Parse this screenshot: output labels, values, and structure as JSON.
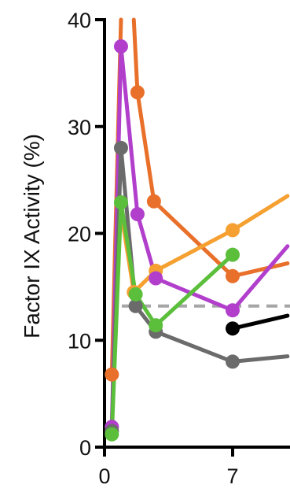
{
  "chart_data": {
    "type": "line",
    "title": "",
    "xlabel": "",
    "ylabel": "Factor IX Activity (%)",
    "xlim": [
      0,
      10
    ],
    "ylim": [
      0,
      40
    ],
    "x_ticks": [
      0,
      7
    ],
    "y_ticks": [
      0,
      10,
      20,
      30,
      40
    ],
    "grid": false,
    "legend": "none",
    "reference_line": {
      "y": 13.2,
      "style": "dashed",
      "color": "#a6a6a6"
    },
    "series": [
      {
        "color": "#e8702a",
        "points": [
          [
            0.4,
            6.8
          ],
          [
            0.9,
            40
          ]
        ],
        "markers": [
          [
            0.4,
            6.8
          ]
        ]
      },
      {
        "color": "#e8702a",
        "points": [
          [
            1.6,
            40
          ],
          [
            1.8,
            33.2
          ],
          [
            2.7,
            23.0
          ],
          [
            7.0,
            16.0
          ],
          [
            10.0,
            17.2
          ]
        ],
        "markers": [
          [
            1.8,
            33.2
          ],
          [
            2.7,
            23.0
          ],
          [
            7.0,
            16.0
          ]
        ]
      },
      {
        "color": "#f5a030",
        "points": [
          [
            1.0,
            21.0
          ],
          [
            1.6,
            14.5
          ],
          [
            2.8,
            16.5
          ],
          [
            7.0,
            20.3
          ],
          [
            10.0,
            23.5
          ]
        ],
        "markers": [
          [
            1.6,
            14.5
          ],
          [
            2.8,
            16.5
          ],
          [
            7.0,
            20.3
          ]
        ]
      },
      {
        "color": "#b13fcc",
        "points": [
          [
            0.4,
            1.9
          ],
          [
            0.9,
            37.5
          ],
          [
            1.8,
            21.8
          ],
          [
            2.8,
            15.8
          ],
          [
            7.0,
            12.8
          ],
          [
            10.0,
            18.8
          ]
        ],
        "markers": [
          [
            0.4,
            1.9
          ],
          [
            0.9,
            37.5
          ],
          [
            1.8,
            21.8
          ],
          [
            2.8,
            15.8
          ],
          [
            7.0,
            12.8
          ]
        ]
      },
      {
        "color": "#6b6b6b",
        "points": [
          [
            0.4,
            1.5
          ],
          [
            0.9,
            28.0
          ],
          [
            1.7,
            13.2
          ],
          [
            2.8,
            10.8
          ],
          [
            7.0,
            8.0
          ],
          [
            10.0,
            8.5
          ]
        ],
        "markers": [
          [
            0.4,
            1.5
          ],
          [
            0.9,
            28.0
          ],
          [
            1.7,
            13.2
          ],
          [
            2.8,
            10.8
          ],
          [
            7.0,
            8.0
          ]
        ]
      },
      {
        "color": "#5bbf3c",
        "points": [
          [
            0.4,
            1.2
          ],
          [
            0.9,
            22.9
          ],
          [
            1.7,
            14.3
          ],
          [
            2.8,
            11.4
          ],
          [
            7.0,
            18.0
          ]
        ],
        "markers": [
          [
            0.4,
            1.2
          ],
          [
            0.9,
            22.9
          ],
          [
            1.7,
            14.3
          ],
          [
            2.8,
            11.4
          ],
          [
            7.0,
            18.0
          ]
        ]
      },
      {
        "color": "#000000",
        "points": [
          [
            7.0,
            11.1
          ],
          [
            10.0,
            12.3
          ]
        ],
        "markers": [
          [
            7.0,
            11.1
          ]
        ]
      }
    ]
  }
}
